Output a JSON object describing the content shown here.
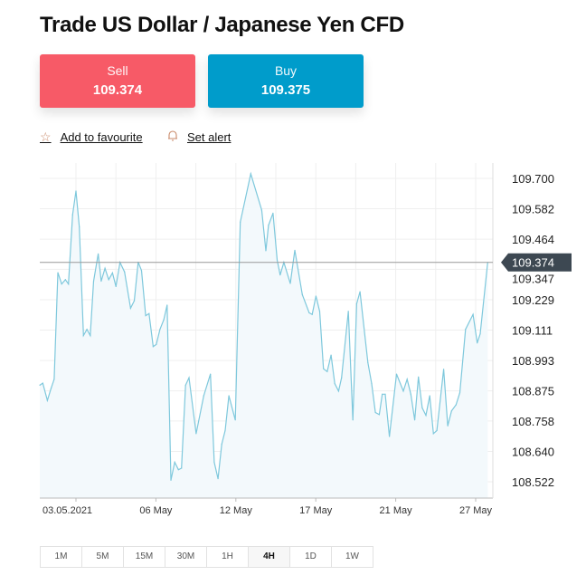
{
  "title": "Trade US Dollar / Japanese Yen CFD",
  "sell": {
    "label": "Sell",
    "price": "109.374"
  },
  "buy": {
    "label": "Buy",
    "price": "109.375"
  },
  "actions": {
    "favourite": "Add to favourite",
    "alert": "Set alert"
  },
  "timeframes": [
    "1M",
    "5M",
    "15M",
    "30M",
    "1H",
    "4H",
    "1D",
    "1W"
  ],
  "active_timeframe": "4H",
  "colors": {
    "sell": "#f75a67",
    "buy": "#009ccb",
    "line": "#7ec8dc",
    "badge": "#3d4852"
  },
  "chart_data": {
    "type": "area",
    "xlabel": "",
    "ylabel": "",
    "x_ticks": [
      {
        "x": 0,
        "label": "03.05.2021"
      },
      {
        "x": 1,
        "label": "06 May"
      },
      {
        "x": 2,
        "label": "12 May"
      },
      {
        "x": 3,
        "label": "17 May"
      },
      {
        "x": 4,
        "label": "21 May"
      },
      {
        "x": 5,
        "label": "27 May"
      }
    ],
    "xlim": [
      -0.452,
      5.2
    ],
    "y_ticks": [
      "109.700",
      "109.582",
      "109.464",
      "109.347",
      "109.229",
      "109.111",
      "108.993",
      "108.875",
      "108.758",
      "108.640",
      "108.522"
    ],
    "ylim": [
      108.45,
      109.76
    ],
    "current_price": "109.374",
    "grid": true,
    "x": [
      -0.452,
      -0.415,
      -0.358,
      -0.311,
      -0.273,
      -0.226,
      -0.179,
      -0.132,
      -0.094,
      -0.042,
      0,
      0.042,
      0.094,
      0.137,
      0.179,
      0.221,
      0.278,
      0.316,
      0.363,
      0.41,
      0.457,
      0.5,
      0.551,
      0.608,
      0.683,
      0.73,
      0.778,
      0.82,
      0.872,
      0.914,
      0.966,
      1.004,
      1.051,
      1.098,
      1.14,
      1.188,
      1.235,
      1.282,
      1.32,
      1.371,
      1.414,
      1.503,
      1.598,
      1.682,
      1.73,
      1.777,
      1.824,
      1.866,
      1.913,
      1.993,
      2.055,
      2.187,
      2.323,
      2.375,
      2.408,
      2.465,
      2.517,
      2.554,
      2.601,
      2.681,
      2.738,
      2.832,
      2.917,
      2.955,
      3.002,
      3.049,
      3.096,
      3.143,
      3.191,
      3.238,
      3.285,
      3.322,
      3.407,
      3.464,
      3.511,
      3.553,
      3.652,
      3.699,
      3.746,
      3.794,
      3.831,
      3.869,
      3.921,
      4.01,
      4.095,
      4.142,
      4.189,
      4.237,
      4.284,
      4.331,
      4.378,
      4.425,
      4.472,
      4.515,
      4.599,
      4.651,
      4.698,
      4.755,
      4.802,
      4.873,
      4.967,
      5.019,
      5.057,
      5.151
    ],
    "y": [
      108.897,
      108.905,
      108.838,
      108.885,
      108.92,
      109.334,
      109.29,
      109.307,
      109.29,
      109.559,
      109.651,
      109.512,
      109.09,
      109.114,
      109.09,
      109.301,
      109.407,
      109.301,
      109.351,
      109.307,
      109.333,
      109.28,
      109.374,
      109.337,
      109.196,
      109.225,
      109.375,
      109.342,
      109.167,
      109.175,
      109.047,
      109.055,
      109.114,
      109.151,
      109.208,
      108.528,
      108.598,
      108.569,
      108.575,
      108.897,
      108.926,
      108.709,
      108.856,
      108.94,
      108.598,
      108.534,
      108.668,
      108.721,
      108.856,
      108.762,
      109.53,
      109.718,
      109.577,
      109.419,
      109.518,
      109.565,
      109.383,
      109.325,
      109.374,
      109.292,
      109.421,
      109.249,
      109.178,
      109.172,
      109.243,
      109.184,
      108.961,
      108.95,
      109.014,
      108.903,
      108.874,
      108.926,
      109.184,
      108.762,
      109.213,
      109.26,
      108.985,
      108.903,
      108.791,
      108.783,
      108.862,
      108.862,
      108.698,
      108.94,
      108.874,
      108.92,
      108.862,
      108.762,
      108.929,
      108.809,
      108.78,
      108.856,
      108.709,
      108.721,
      108.959,
      108.739,
      108.797,
      108.821,
      108.868,
      109.114,
      109.172,
      109.061,
      109.096,
      109.374
    ]
  }
}
